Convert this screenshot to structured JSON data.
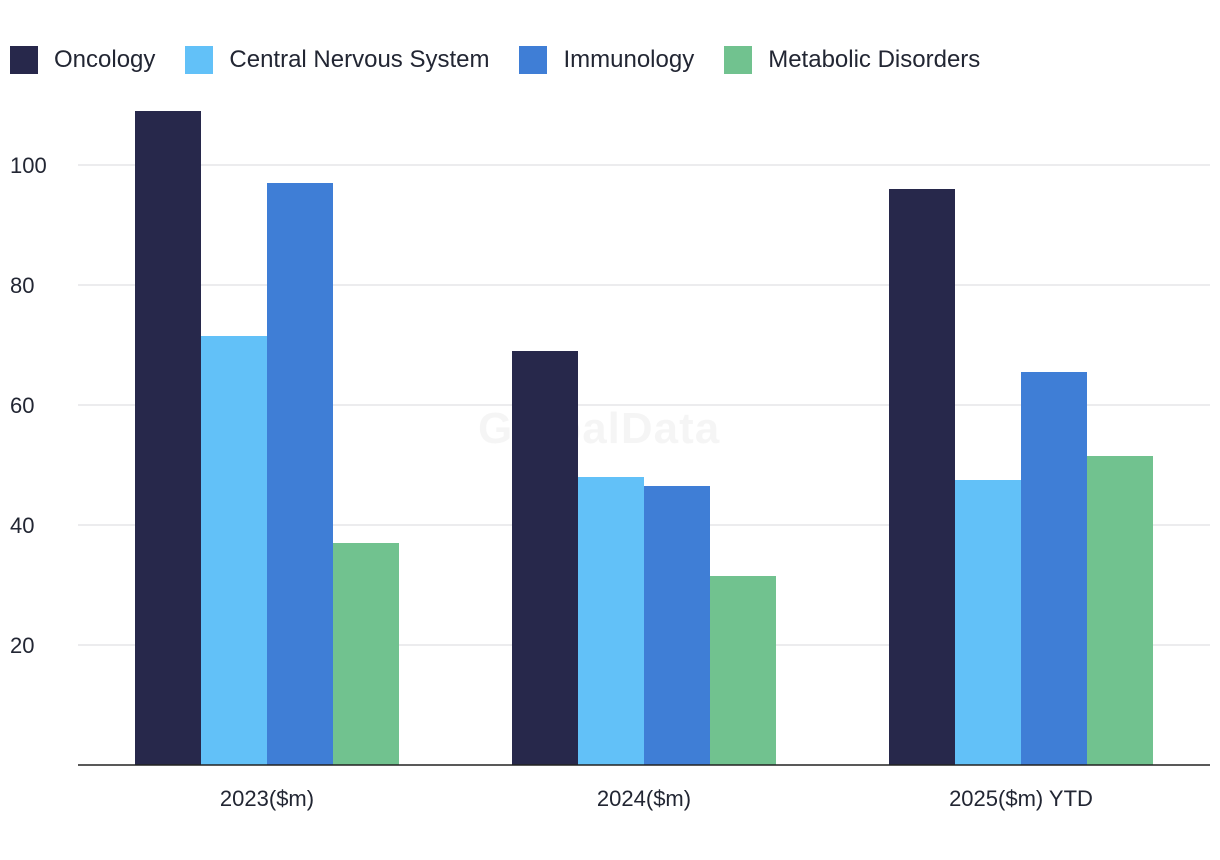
{
  "watermark": "GlobalData",
  "legend": [
    {
      "name": "Oncology",
      "color": "#27284b"
    },
    {
      "name": "Central Nervous System",
      "color": "#62c1f8"
    },
    {
      "name": "Immunology",
      "color": "#3f7ed6"
    },
    {
      "name": "Metabolic Disorders",
      "color": "#71c28f"
    }
  ],
  "chart_data": {
    "type": "bar",
    "title": "",
    "xlabel": "",
    "ylabel": "",
    "categories": [
      "2023($m)",
      "2024($m)",
      "2025($m) YTD"
    ],
    "series": [
      {
        "name": "Oncology",
        "color": "#27284b",
        "values": [
          109,
          69,
          96
        ]
      },
      {
        "name": "Central Nervous System",
        "color": "#62c1f8",
        "values": [
          71.5,
          48,
          47.5
        ]
      },
      {
        "name": "Immunology",
        "color": "#3f7ed6",
        "values": [
          97,
          46.5,
          65.5
        ]
      },
      {
        "name": "Metabolic Disorders",
        "color": "#71c28f",
        "values": [
          37,
          31.5,
          51.5
        ]
      }
    ],
    "ylim": [
      0,
      110
    ],
    "yticks": [
      20,
      40,
      60,
      80,
      100
    ],
    "grid": true,
    "legend_position": "top-left"
  }
}
